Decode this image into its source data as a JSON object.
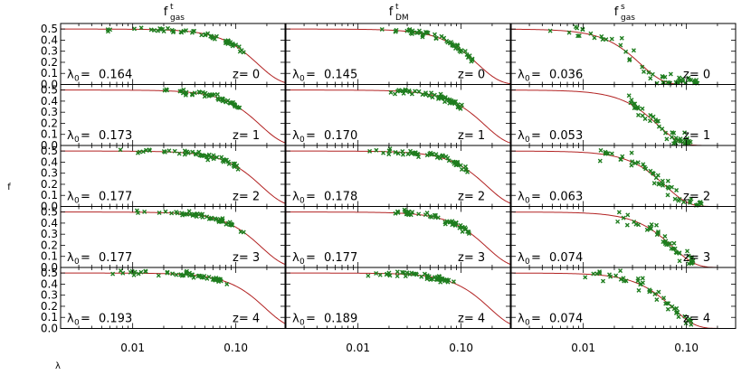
{
  "chart_data": {
    "type": "scatter",
    "layout": "5 rows x 3 columns grid, shared axes",
    "xscale": "log",
    "xlim": [
      0.002,
      0.3
    ],
    "ylim": [
      0,
      0.55
    ],
    "xticks": [
      0.01,
      0.1
    ],
    "xtick_labels": [
      "0.01",
      "0.10"
    ],
    "yticks": [
      0.0,
      0.1,
      0.2,
      0.3,
      0.4,
      0.5
    ],
    "ytick_labels": [
      "0.0",
      "0.1",
      "0.2",
      "0.3",
      "0.4",
      "0.5"
    ],
    "xlabel": "λ",
    "ylabel": "f",
    "columns": [
      {
        "title_base": "f",
        "title_sup": "t",
        "title_sub": "gas"
      },
      {
        "title_base": "f",
        "title_sup": "t",
        "title_sub": "DM"
      },
      {
        "title_base": "f",
        "title_sup": "s",
        "title_sub": "gas"
      }
    ],
    "rows": [
      {
        "z_label": "z= 0",
        "lambda0": [
          "0.164",
          "0.145",
          "0.036"
        ]
      },
      {
        "z_label": "z= 1",
        "lambda0": [
          "0.173",
          "0.170",
          "0.053"
        ]
      },
      {
        "z_label": "z= 2",
        "lambda0": [
          "0.177",
          "0.178",
          "0.063"
        ]
      },
      {
        "z_label": "z= 3",
        "lambda0": [
          "0.177",
          "0.177",
          "0.074"
        ]
      },
      {
        "z_label": "z= 4",
        "lambda0": [
          "0.193",
          "0.189",
          "0.074"
        ]
      }
    ],
    "lambda0_prefix": "λ",
    "lambda0_sub": "0",
    "lambda0_eq": "=",
    "model": "f = 0.5 * exp(-(λ/λ0)^2)",
    "point_color": "#1e7d1e",
    "curve_color": "#b22222",
    "point_clusters": [
      [
        {
          "n": 50,
          "xmin": 0.005,
          "xmax": 0.12,
          "spread": 0.025
        },
        {
          "n": 50,
          "xmin": 0.012,
          "xmax": 0.13,
          "spread": 0.025
        },
        {
          "n": 55,
          "xmin": 0.004,
          "xmax": 0.13,
          "spread": 0.07
        }
      ],
      [
        {
          "n": 50,
          "xmin": 0.018,
          "xmax": 0.11,
          "spread": 0.025
        },
        {
          "n": 50,
          "xmin": 0.02,
          "xmax": 0.11,
          "spread": 0.025
        },
        {
          "n": 45,
          "xmin": 0.025,
          "xmax": 0.11,
          "spread": 0.07
        }
      ],
      [
        {
          "n": 50,
          "xmin": 0.007,
          "xmax": 0.11,
          "spread": 0.025
        },
        {
          "n": 50,
          "xmin": 0.012,
          "xmax": 0.12,
          "spread": 0.025
        },
        {
          "n": 50,
          "xmin": 0.012,
          "xmax": 0.14,
          "spread": 0.07
        }
      ],
      [
        {
          "n": 50,
          "xmin": 0.01,
          "xmax": 0.12,
          "spread": 0.025
        },
        {
          "n": 50,
          "xmin": 0.017,
          "xmax": 0.12,
          "spread": 0.025
        },
        {
          "n": 45,
          "xmin": 0.018,
          "xmax": 0.12,
          "spread": 0.06
        }
      ],
      [
        {
          "n": 50,
          "xmin": 0.005,
          "xmax": 0.085,
          "spread": 0.025
        },
        {
          "n": 50,
          "xmin": 0.012,
          "xmax": 0.085,
          "spread": 0.025
        },
        {
          "n": 45,
          "xmin": 0.009,
          "xmax": 0.12,
          "spread": 0.06
        }
      ]
    ]
  }
}
